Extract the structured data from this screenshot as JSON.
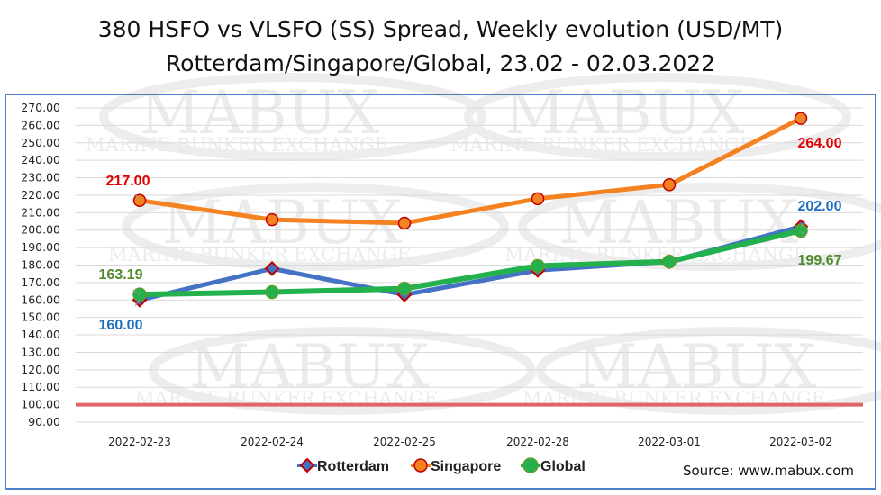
{
  "chart_data": {
    "type": "line",
    "title": "380 HSFO vs VLSFO (SS) Spread, Weekly evolution (USD/MT)",
    "subtitle": "Rotterdam/Singapore/Global, 23.02 - 02.03.2022",
    "categories": [
      "2022-02-23",
      "2022-02-24",
      "2022-02-25",
      "2022-02-28",
      "2022-03-01",
      "2022-03-02"
    ],
    "series": [
      {
        "name": "Rotterdam",
        "values": [
          160.0,
          178.0,
          163.0,
          177.0,
          182.0,
          202.0
        ],
        "color": "#4472c4",
        "marker": "diamond",
        "marker_color": "#c00000"
      },
      {
        "name": "Singapore",
        "values": [
          217.0,
          206.0,
          204.0,
          218.0,
          226.0,
          264.0
        ],
        "color": "#f58220",
        "marker": "circle",
        "marker_color": "#c00000"
      },
      {
        "name": "Global",
        "values": [
          163.19,
          164.5,
          166.5,
          179.5,
          182.0,
          199.67
        ],
        "color": "#22b14c",
        "marker": "circle",
        "marker_color": "#5e9c2f"
      }
    ],
    "data_labels": [
      {
        "series": "Singapore",
        "index": 0,
        "text": "217.00",
        "color": "#e00000"
      },
      {
        "series": "Singapore",
        "index": 5,
        "text": "264.00",
        "color": "#e00000"
      },
      {
        "series": "Rotterdam",
        "index": 0,
        "text": "160.00",
        "color": "#1f6fc0"
      },
      {
        "series": "Rotterdam",
        "index": 5,
        "text": "202.00",
        "color": "#1f6fc0"
      },
      {
        "series": "Global",
        "index": 0,
        "text": "163.19",
        "color": "#4e8a2a"
      },
      {
        "series": "Global",
        "index": 5,
        "text": "199.67",
        "color": "#4e8a2a"
      }
    ],
    "ylim": [
      90,
      270
    ],
    "yticks": [
      "270.00",
      "260.00",
      "250.00",
      "240.00",
      "230.00",
      "220.00",
      "210.00",
      "200.00",
      "190.00",
      "180.00",
      "170.00",
      "160.00",
      "150.00",
      "140.00",
      "130.00",
      "120.00",
      "110.00",
      "100.00",
      "90.00"
    ],
    "reference_line": {
      "value": 100,
      "color": "#e06666"
    },
    "grid": true,
    "legend": "bottom-center",
    "source": "Source: www.mabux.com"
  },
  "watermark": {
    "logo_text": "MABUX",
    "tagline": "MARINE BUNKER EXCHANGE"
  }
}
